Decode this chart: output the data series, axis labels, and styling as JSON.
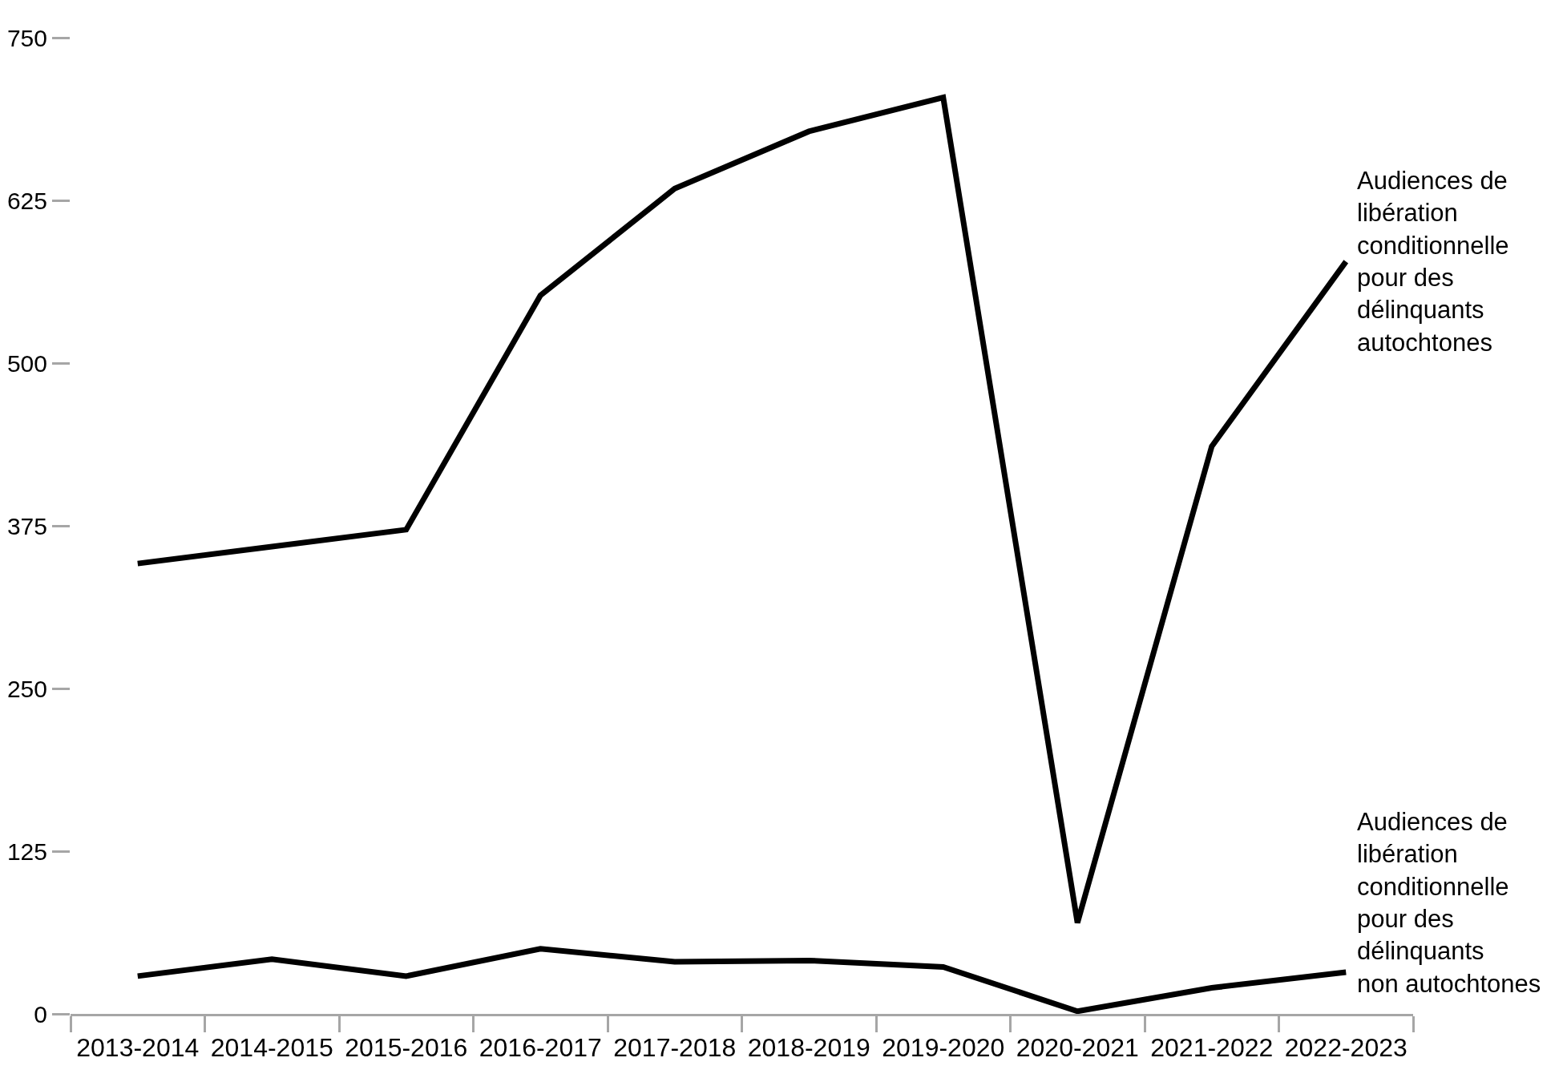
{
  "chart_data": {
    "type": "line",
    "categories": [
      "2013-2014",
      "2014-2015",
      "2015-2016",
      "2016-2017",
      "2017-2018",
      "2018-2019",
      "2019-2020",
      "2020-2021",
      "2021-2022",
      "2022-2023"
    ],
    "series": [
      {
        "name": "Audiences de\nlibération\nconditionnelle\npour des\ndélinquants\nautochtones",
        "color": "#000000",
        "values": [
          346,
          359,
          372,
          552,
          634,
          678,
          704,
          70,
          436,
          578
        ]
      },
      {
        "name": "Audiences de\nlibération\nconditionnelle\npour des\ndélinquants\nnon autochtones",
        "color": "#000000",
        "values": [
          29,
          42,
          29,
          50,
          40,
          41,
          36,
          2,
          20,
          32
        ]
      }
    ],
    "ylim": [
      0,
      750
    ],
    "yticks": [
      0,
      125,
      250,
      375,
      500,
      625,
      750
    ],
    "line_style": "solid"
  }
}
